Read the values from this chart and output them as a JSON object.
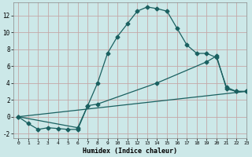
{
  "xlabel": "Humidex (Indice chaleur)",
  "bg_color": "#cce8e8",
  "grid_color": "#c4a8a8",
  "line_color": "#1a6060",
  "line1_x": [
    0,
    1,
    2,
    3,
    4,
    5,
    6,
    7,
    8,
    9,
    10,
    11,
    12,
    13,
    14,
    15,
    16,
    17,
    18,
    19,
    20,
    21,
    22,
    23
  ],
  "line1_y": [
    0,
    -0.8,
    -1.5,
    -1.3,
    -1.4,
    -1.5,
    -1.5,
    1.3,
    4.0,
    7.5,
    9.5,
    11.0,
    12.5,
    13.0,
    12.8,
    12.5,
    10.5,
    8.5,
    7.5,
    7.5,
    7.0,
    3.5,
    3.0,
    3.0
  ],
  "line2_x": [
    0,
    6,
    7,
    8,
    14,
    19,
    20,
    21,
    22,
    23
  ],
  "line2_y": [
    0,
    -1.3,
    1.3,
    1.5,
    4.0,
    6.5,
    7.2,
    3.3,
    3.0,
    3.0
  ],
  "line3_x": [
    0,
    23
  ],
  "line3_y": [
    0,
    3.0
  ],
  "xlim": [
    -0.5,
    23
  ],
  "ylim": [
    -2.5,
    13.5
  ],
  "yticks": [
    -2,
    0,
    2,
    4,
    6,
    8,
    10,
    12
  ],
  "xticks": [
    0,
    1,
    2,
    3,
    4,
    5,
    6,
    7,
    8,
    9,
    10,
    11,
    12,
    13,
    14,
    15,
    16,
    17,
    18,
    19,
    20,
    21,
    22,
    23
  ]
}
